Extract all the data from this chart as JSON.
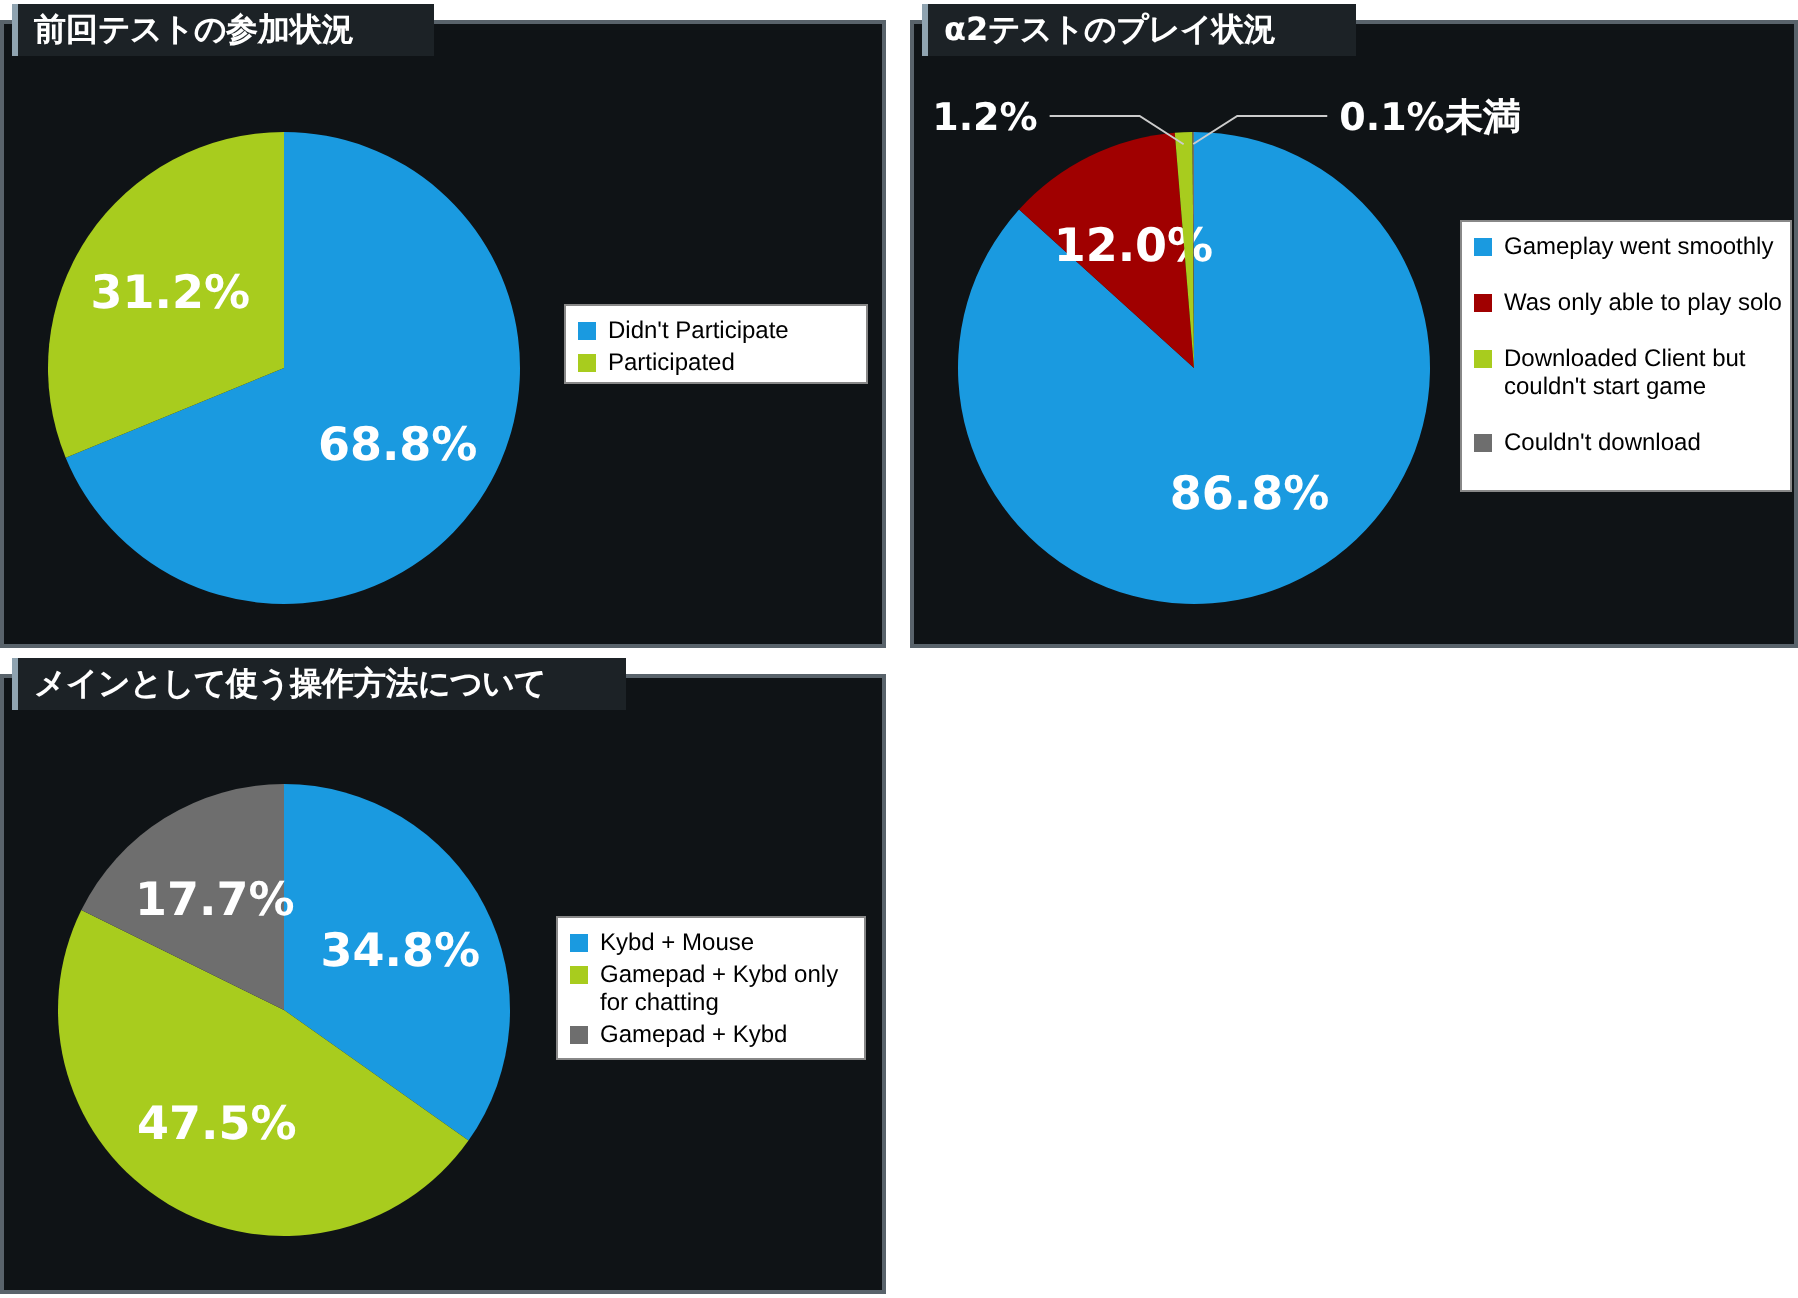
{
  "chart_data": [
    {
      "type": "pie",
      "title": "前回テストの参加状況",
      "categories": [
        "Didn't Participate",
        "Participated"
      ],
      "values": [
        68.8,
        31.2
      ],
      "value_labels": [
        "68.8%",
        "31.2%"
      ],
      "colors": [
        "#1a9ae0",
        "#a8cc1e"
      ],
      "legend": "right"
    },
    {
      "type": "pie",
      "title": "α2テストのプレイ状況",
      "categories": [
        "Gameplay went smoothly",
        "Was only able to play solo",
        "Downloaded Client but couldn't start game",
        "Couldn't download"
      ],
      "values": [
        86.8,
        12.0,
        1.2,
        0.1
      ],
      "value_labels": [
        "86.8%",
        "12.0%",
        "1.2%",
        "0.1%未満"
      ],
      "colors": [
        "#1a9ae0",
        "#a00000",
        "#a8cc1e",
        "#6e6e6e"
      ],
      "legend": "right"
    },
    {
      "type": "pie",
      "title": "メインとして使う操作方法について",
      "categories": [
        "Kybd + Mouse",
        "Gamepad + Kybd only for chatting",
        "Gamepad + Kybd"
      ],
      "values": [
        34.8,
        47.5,
        17.7
      ],
      "value_labels": [
        "34.8%",
        "47.5%",
        "17.7%"
      ],
      "colors": [
        "#1a9ae0",
        "#a8cc1e",
        "#6e6e6e"
      ],
      "legend": "right"
    }
  ]
}
